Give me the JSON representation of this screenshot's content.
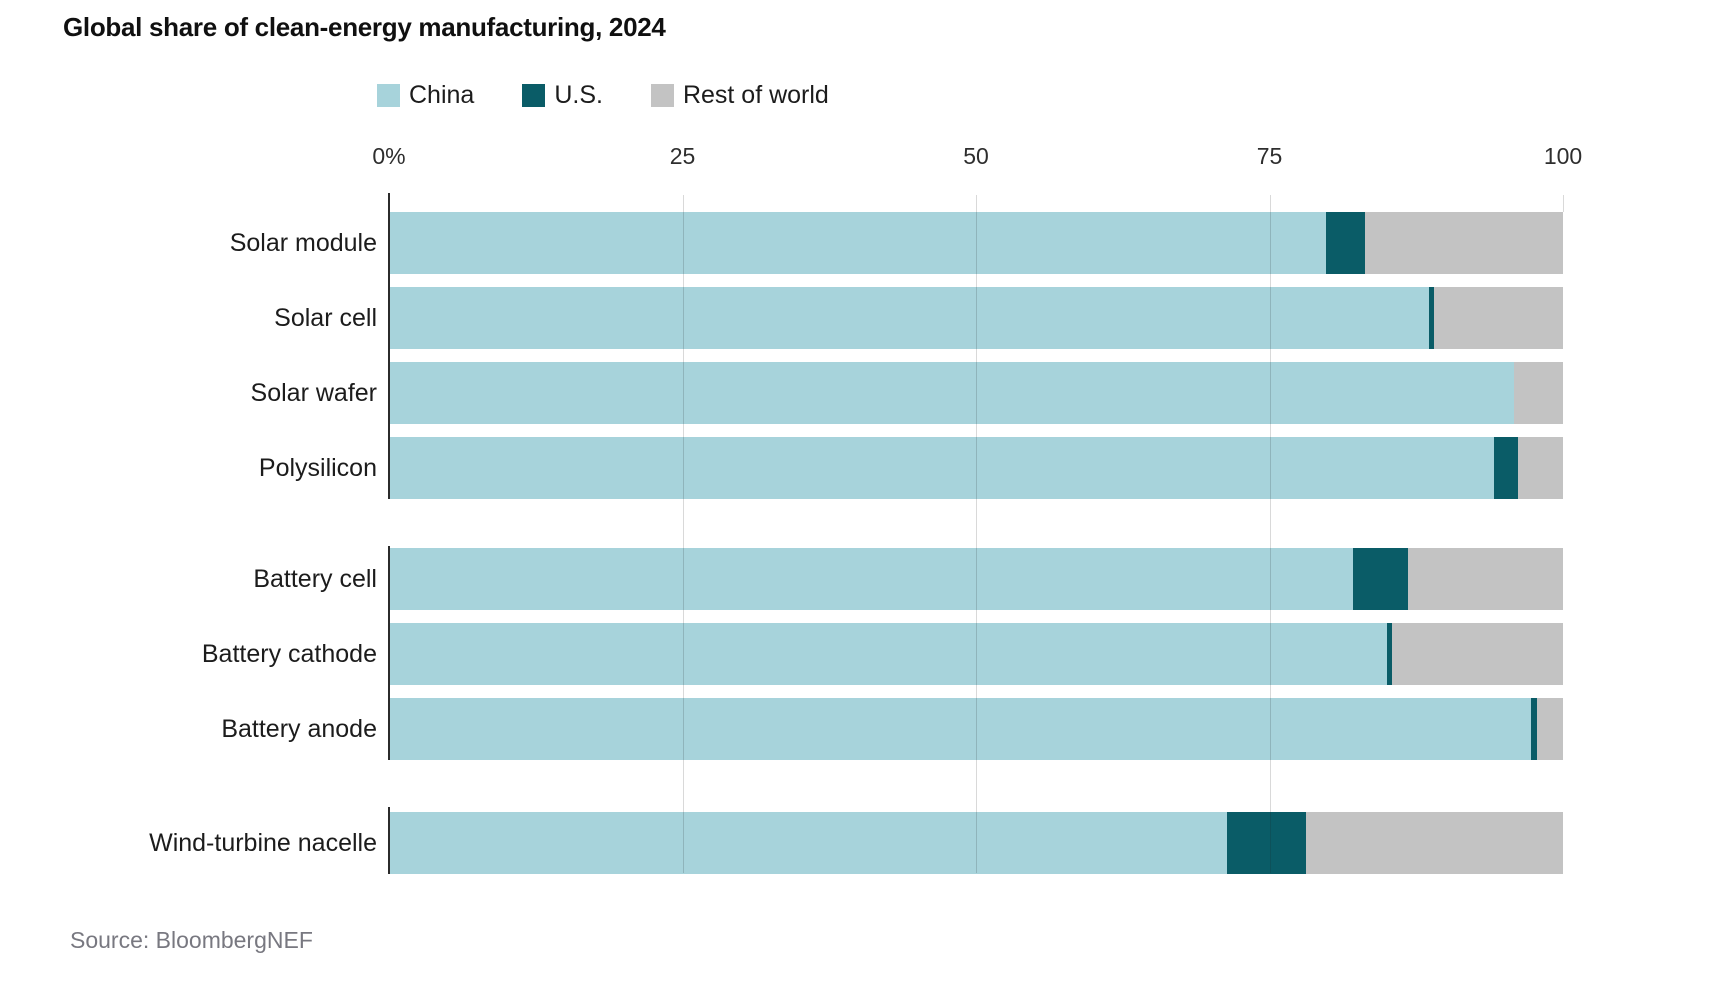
{
  "chart_data": {
    "type": "bar",
    "stacked": true,
    "orientation": "horizontal",
    "unit": "percent",
    "title": "Global share of clean-energy manufacturing, 2024",
    "source": "Source: BloombergNEF",
    "xlim": [
      0,
      100
    ],
    "x_tick_values": [
      0,
      25,
      50,
      75,
      100
    ],
    "x_tick_labels": [
      "0%",
      "25",
      "50",
      "75",
      "100"
    ],
    "grid": true,
    "legend_position": "top",
    "legend": [
      {
        "name": "China",
        "color": "#A7D3DB"
      },
      {
        "name": "U.S.",
        "color": "#0A5C67"
      },
      {
        "name": "Rest of world",
        "color": "#C3C3C3"
      }
    ],
    "series_names": [
      "China",
      "U.S.",
      "Rest of world"
    ],
    "groups": [
      {
        "name": "solar",
        "rows": [
          {
            "label": "Solar module",
            "values": [
              79.8,
              3.3,
              16.9
            ]
          },
          {
            "label": "Solar cell",
            "values": [
              88.6,
              0.4,
              11.0
            ]
          },
          {
            "label": "Solar wafer",
            "values": [
              95.8,
              0.0,
              4.2
            ]
          },
          {
            "label": "Polysilicon",
            "values": [
              94.1,
              2.1,
              3.8
            ]
          }
        ]
      },
      {
        "name": "battery",
        "rows": [
          {
            "label": "Battery cell",
            "values": [
              82.1,
              4.7,
              13.2
            ]
          },
          {
            "label": "Battery cathode",
            "values": [
              85.0,
              0.4,
              14.6
            ]
          },
          {
            "label": "Battery anode",
            "values": [
              97.3,
              0.5,
              2.2
            ]
          }
        ]
      },
      {
        "name": "wind",
        "rows": [
          {
            "label": "Wind-turbine nacelle",
            "values": [
              71.4,
              6.7,
              21.9
            ]
          }
        ]
      }
    ]
  }
}
